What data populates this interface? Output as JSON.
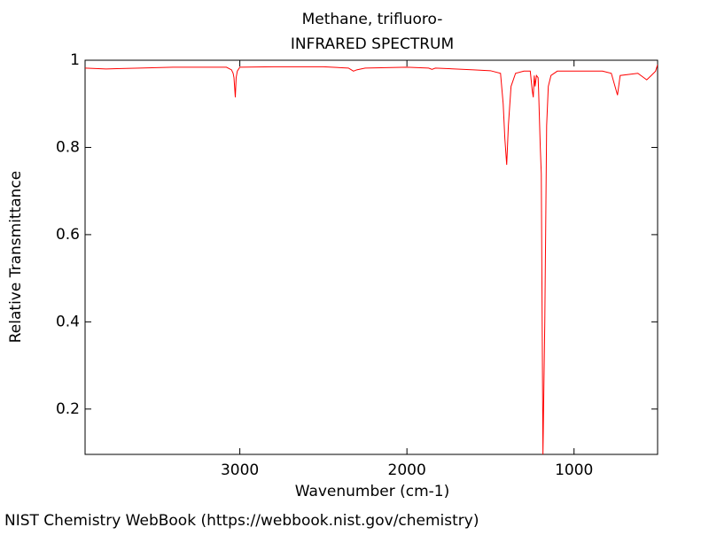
{
  "chart_data": {
    "type": "line",
    "title": "Methane, trifluoro-",
    "subtitle": "INFRARED SPECTRUM",
    "x_label": "Wavenumber (cm-1)",
    "y_label": "Relative Transmittance",
    "source": "NIST Chemistry WebBook (https://webbook.nist.gov/chemistry)",
    "xlim": [
      3926,
      500
    ],
    "ylim": [
      0.096,
      1.0
    ],
    "xticks": [
      3000,
      2000,
      1000
    ],
    "yticks": [
      0.2,
      0.4,
      0.6,
      0.8,
      1
    ],
    "x": [
      3926,
      3800,
      3600,
      3400,
      3200,
      3080,
      3050,
      3040,
      3035,
      3027,
      3022,
      3015,
      3000,
      2800,
      2500,
      2350,
      2320,
      2300,
      2250,
      2000,
      1870,
      1850,
      1830,
      1600,
      1500,
      1440,
      1424,
      1414,
      1403,
      1393,
      1377,
      1350,
      1300,
      1262,
      1250,
      1244,
      1238,
      1233,
      1225,
      1215,
      1212,
      1202,
      1196,
      1186,
      1175,
      1170,
      1164,
      1154,
      1138,
      1100,
      900,
      830,
      777,
      740,
      724,
      618,
      565,
      538,
      512,
      500
    ],
    "series": [
      {
        "name": "Methane, trifluoro-",
        "color": "#ff0000",
        "values": [
          0.982,
          0.98,
          0.982,
          0.984,
          0.984,
          0.984,
          0.978,
          0.97,
          0.96,
          0.915,
          0.96,
          0.975,
          0.984,
          0.985,
          0.985,
          0.982,
          0.975,
          0.978,
          0.982,
          0.984,
          0.982,
          0.979,
          0.982,
          0.978,
          0.976,
          0.97,
          0.9,
          0.82,
          0.76,
          0.85,
          0.94,
          0.97,
          0.975,
          0.975,
          0.93,
          0.915,
          0.965,
          0.94,
          0.965,
          0.96,
          0.93,
          0.8,
          0.74,
          0.096,
          0.4,
          0.6,
          0.85,
          0.94,
          0.965,
          0.975,
          0.975,
          0.975,
          0.97,
          0.92,
          0.965,
          0.97,
          0.955,
          0.965,
          0.975,
          0.99
        ]
      }
    ]
  }
}
